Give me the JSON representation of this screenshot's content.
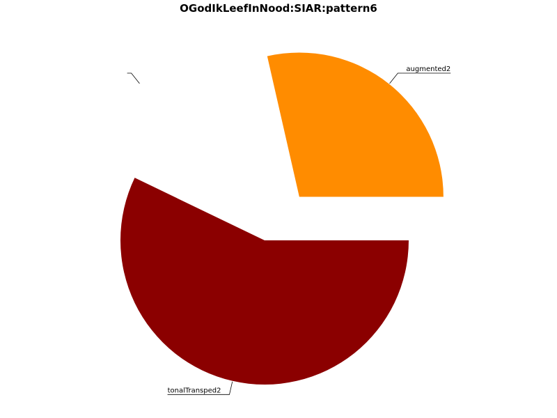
{
  "chart_data": {
    "type": "pie",
    "title": "OGodIkLeefInNood:SIAR:pattern6",
    "legend": "none",
    "slices": [
      {
        "label": "augmented2",
        "value": 1,
        "color": "#ff8c00",
        "exploded": true
      },
      {
        "label": "",
        "value": 0.5,
        "color": "#ffffff",
        "exploded": true
      },
      {
        "label": "tonalTransped2",
        "value": 2,
        "color": "#8b0000",
        "exploded": false
      }
    ]
  }
}
